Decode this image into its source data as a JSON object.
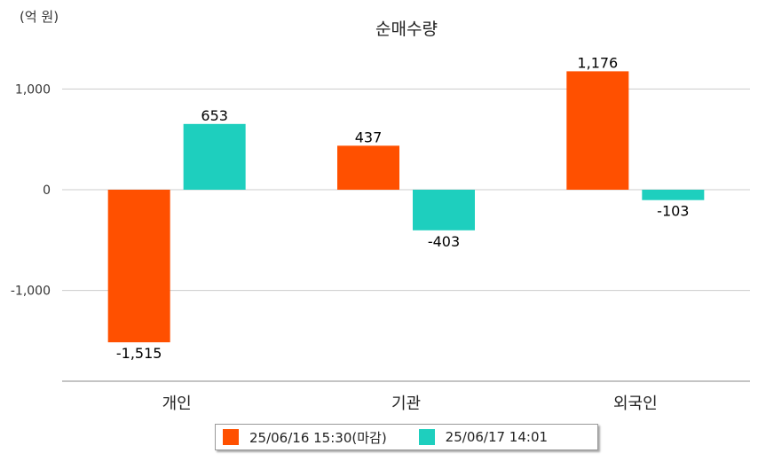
{
  "chart_data": {
    "type": "bar",
    "title": "순매수량",
    "unit_label": "(억 원)",
    "categories": [
      "개인",
      "기관",
      "외국인"
    ],
    "series": [
      {
        "name": "25/06/16 15:30(마감)",
        "values": [
          -1515,
          437,
          1176
        ],
        "labels": [
          "-1,515",
          "437",
          "1,176"
        ]
      },
      {
        "name": "25/06/17 14:01",
        "values": [
          653,
          -403,
          -103
        ],
        "labels": [
          "653",
          "-403",
          "-103"
        ]
      }
    ],
    "y_ticks": [
      1000,
      0,
      -1000
    ],
    "y_tick_labels": [
      "1,000",
      "0",
      "-1,000"
    ],
    "ylim": [
      -1900,
      1400
    ],
    "grid": true,
    "legend_position": "bottom",
    "colors": [
      "#ff5000",
      "#1ecfbe"
    ]
  }
}
